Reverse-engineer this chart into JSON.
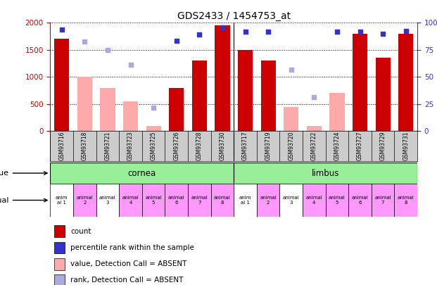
{
  "title": "GDS2433 / 1454753_at",
  "samples": [
    "GSM93716",
    "GSM93718",
    "GSM93721",
    "GSM93723",
    "GSM93725",
    "GSM93726",
    "GSM93728",
    "GSM93730",
    "GSM93717",
    "GSM93719",
    "GSM93720",
    "GSM93722",
    "GSM93724",
    "GSM93727",
    "GSM93729",
    "GSM93731"
  ],
  "count_values": [
    1700,
    null,
    null,
    null,
    null,
    800,
    1300,
    1950,
    1500,
    1300,
    null,
    null,
    null,
    1800,
    1350,
    1800
  ],
  "count_absent": [
    null,
    1000,
    800,
    550,
    100,
    null,
    null,
    null,
    null,
    null,
    450,
    100,
    700,
    null,
    null,
    null
  ],
  "rank_values": [
    1880,
    null,
    null,
    null,
    null,
    1670,
    1790,
    1920,
    1840,
    1840,
    null,
    null,
    1840,
    1840,
    1800,
    1850
  ],
  "rank_absent": [
    null,
    1660,
    1500,
    1230,
    430,
    null,
    null,
    null,
    null,
    null,
    1130,
    630,
    null,
    null,
    null,
    null
  ],
  "tissue_groups": [
    {
      "label": "cornea",
      "start": 0,
      "end": 8
    },
    {
      "label": "limbus",
      "start": 8,
      "end": 16
    }
  ],
  "individual_labels": [
    "anim\nal 1",
    "animal\n2",
    "animal\n3",
    "animal\n4",
    "animal\n5",
    "animal\n6",
    "animal\n7",
    "animal\n8",
    "anim\nal 1",
    "animal\n2",
    "animal\n3",
    "animal\n4",
    "animal\n5",
    "animal\n6",
    "animal\n7",
    "animal\n8"
  ],
  "individual_colors": [
    "#ffffff",
    "#ff99ff",
    "#ffffff",
    "#ff99ff",
    "#ff99ff",
    "#ff99ff",
    "#ff99ff",
    "#ff99ff",
    "#ffffff",
    "#ff99ff",
    "#ffffff",
    "#ff99ff",
    "#ff99ff",
    "#ff99ff",
    "#ff99ff",
    "#ff99ff"
  ],
  "ylim_left": [
    0,
    2000
  ],
  "ylim_right": [
    0,
    100
  ],
  "yticks_left": [
    0,
    500,
    1000,
    1500,
    2000
  ],
  "yticks_right": [
    0,
    25,
    50,
    75,
    100
  ],
  "color_count": "#cc0000",
  "color_rank": "#3333cc",
  "color_absent_bar": "#ffaaaa",
  "color_absent_rank": "#aaaadd",
  "color_tissue": "#99ee99",
  "color_xtick_bg": "#cccccc",
  "figsize": [
    6.21,
    4.05
  ],
  "dpi": 100
}
